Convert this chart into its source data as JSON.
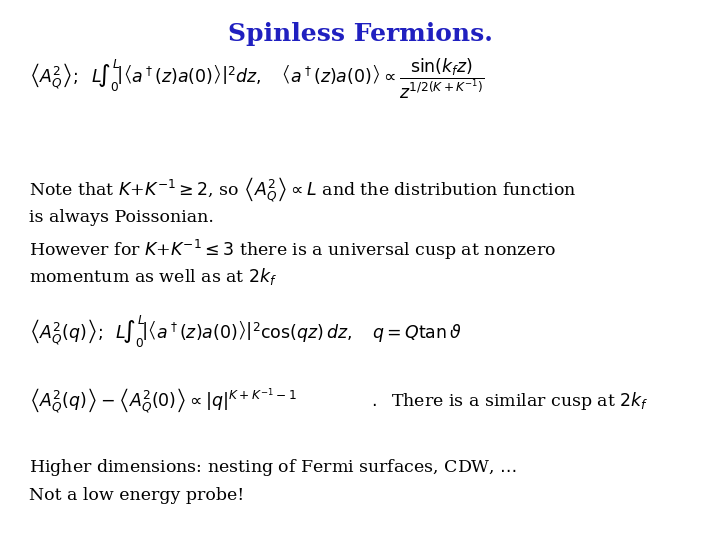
{
  "title": "Spinless Fermions.",
  "title_color": "#2020C0",
  "title_fontsize": 18,
  "background_color": "#ffffff",
  "text_color": "#000000",
  "figsize": [
    7.2,
    5.4
  ],
  "dpi": 100,
  "line2_note": "Note that $K$+$K^{-1} \\geq 2$, so $\\left\\langle A_Q^2 \\right\\rangle \\propto L$ and the distribution function",
  "line3": "is always Poissonian.",
  "line4": "However for $K$+$K^{-1} \\leq 3$ there is a universal cusp at nonzero",
  "line5": "momentum as well as at $2k_f$",
  "line7b": ".  There is a similar cusp at $2k_f$",
  "line8": "Higher dimensions: nesting of Fermi surfaces, CDW, ...",
  "line9": "Not a low energy probe!"
}
